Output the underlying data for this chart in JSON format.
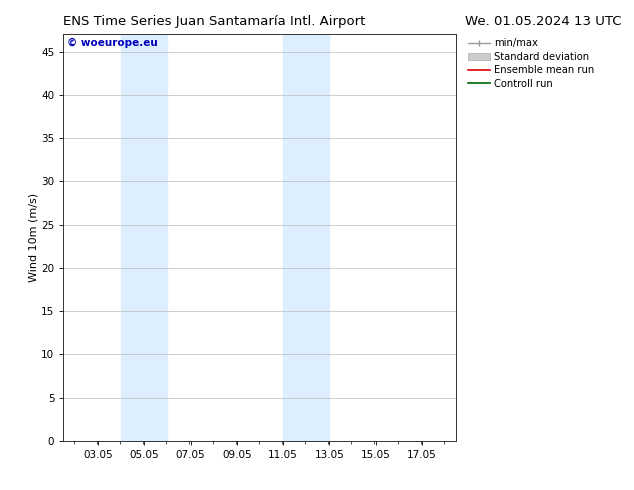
{
  "title_left": "ENS Time Series Juan Santamaría Intl. Airport",
  "title_right": "We. 01.05.2024 13 UTC",
  "ylabel": "Wind 10m (m/s)",
  "watermark": "© woeurope.eu",
  "xlim_left": 1.55,
  "xlim_right": 18.55,
  "ylim_bottom": 0,
  "ylim_top": 47,
  "yticks": [
    0,
    5,
    10,
    15,
    20,
    25,
    30,
    35,
    40,
    45
  ],
  "xtick_labels": [
    "03.05",
    "05.05",
    "07.05",
    "09.05",
    "11.05",
    "13.05",
    "15.05",
    "17.05"
  ],
  "xtick_positions": [
    3.05,
    5.05,
    7.05,
    9.05,
    11.05,
    13.05,
    15.05,
    17.05
  ],
  "shaded_bands": [
    {
      "x_start": 4.05,
      "x_end": 6.05
    },
    {
      "x_start": 11.05,
      "x_end": 13.05
    }
  ],
  "shaded_color": "#ddeeff",
  "background_color": "#ffffff",
  "plot_bg_color": "#ffffff",
  "grid_color": "#bbbbbb",
  "legend_entries": [
    {
      "label": "min/max",
      "color": "#999999",
      "linewidth": 1.0,
      "style": "solid",
      "type": "errorbar"
    },
    {
      "label": "Standard deviation",
      "color": "#cccccc",
      "linewidth": 5,
      "style": "solid",
      "type": "fill"
    },
    {
      "label": "Ensemble mean run",
      "color": "#dd0000",
      "linewidth": 1.2,
      "style": "solid",
      "type": "line"
    },
    {
      "label": "Controll run",
      "color": "#006600",
      "linewidth": 1.2,
      "style": "solid",
      "type": "line"
    }
  ],
  "title_fontsize": 9.5,
  "axis_label_fontsize": 8,
  "tick_fontsize": 7.5,
  "watermark_color": "#0000bb",
  "watermark_fontsize": 7.5
}
